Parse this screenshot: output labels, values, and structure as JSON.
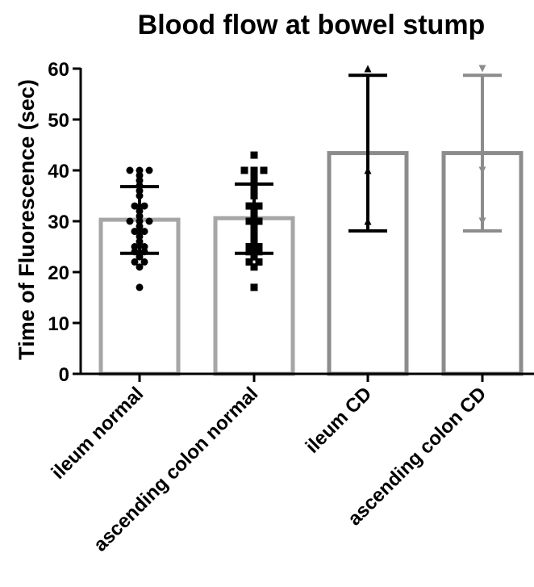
{
  "chart_data": {
    "type": "bar",
    "title": "Blood flow at bowel stump",
    "xlabel": "",
    "ylabel": "Time of Fluorescence (sec)",
    "ylim": [
      0,
      60
    ],
    "yticks": [
      0,
      10,
      20,
      30,
      40,
      50,
      60
    ],
    "grid": false,
    "legend": "none",
    "categories": [
      "ileum normal",
      "ascending colon normal",
      "ileum CD",
      "ascending colon CD"
    ],
    "series": [
      {
        "category": "ileum normal",
        "mean": 30.3,
        "sd_low": 23.7,
        "sd_high": 36.8,
        "bar_color": "#a6a6a6",
        "error_color": "#000000",
        "marker": "circle",
        "points": [
          17,
          21,
          22,
          22,
          23,
          24,
          24,
          25,
          25,
          26,
          27,
          28,
          28,
          29,
          30,
          30,
          30,
          31,
          32,
          33,
          33,
          35,
          36,
          37,
          38,
          39,
          40,
          40,
          40
        ]
      },
      {
        "category": "ascending colon normal",
        "mean": 30.6,
        "sd_low": 23.7,
        "sd_high": 37.3,
        "bar_color": "#a6a6a6",
        "error_color": "#000000",
        "marker": "square",
        "points": [
          17,
          21,
          22,
          22,
          23,
          24,
          24,
          25,
          25,
          26,
          27,
          28,
          29,
          30,
          30,
          31,
          32,
          33,
          33,
          35,
          36,
          37,
          38,
          39,
          40,
          40,
          40,
          43
        ]
      },
      {
        "category": "ileum CD",
        "mean": 43.4,
        "sd_low": 28.1,
        "sd_high": 58.7,
        "bar_color": "#8c8c8c",
        "error_color": "#000000",
        "marker": "triangle-up",
        "points": [
          30,
          40,
          60
        ]
      },
      {
        "category": "ascending colon CD",
        "mean": 43.4,
        "sd_low": 28.1,
        "sd_high": 58.7,
        "bar_color": "#8c8c8c",
        "error_color": "#8c8c8c",
        "marker": "triangle-down",
        "points": [
          30,
          40,
          60
        ]
      }
    ]
  }
}
